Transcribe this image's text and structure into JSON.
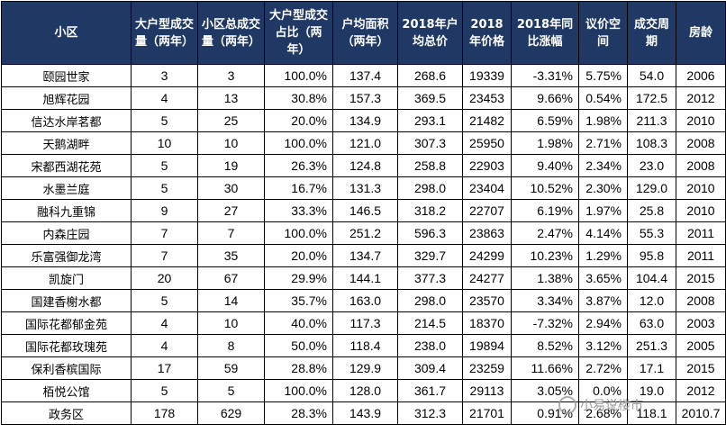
{
  "headers": [
    "小区",
    "大户型成交量（两年）",
    "小区总成交量（两年）",
    "大户型成交占比（两年）",
    "户均面积（两年）",
    "2018年户均总价",
    "2018年价格",
    "2018年同比涨幅",
    "议价空间",
    "成交周期",
    "房龄"
  ],
  "rows": [
    [
      "颐园世家",
      "3",
      "3",
      "100.0%",
      "137.4",
      "268.6",
      "19339",
      "-3.31%",
      "5.75%",
      "54.0",
      "2006"
    ],
    [
      "旭辉花园",
      "4",
      "13",
      "30.8%",
      "157.3",
      "369.5",
      "23453",
      "9.66%",
      "0.54%",
      "172.5",
      "2012"
    ],
    [
      "信达水岸茗都",
      "5",
      "25",
      "20.0%",
      "134.9",
      "293.1",
      "21482",
      "6.59%",
      "1.98%",
      "211.3",
      "2010"
    ],
    [
      "天鹅湖畔",
      "10",
      "10",
      "100.0%",
      "121.0",
      "307.3",
      "25950",
      "1.98%",
      "2.71%",
      "108.3",
      "2008"
    ],
    [
      "宋都西湖花苑",
      "5",
      "19",
      "26.3%",
      "124.8",
      "258.8",
      "22903",
      "9.40%",
      "2.34%",
      "23.0",
      "2008"
    ],
    [
      "水墨兰庭",
      "5",
      "30",
      "16.7%",
      "131.3",
      "298.0",
      "23404",
      "10.52%",
      "2.30%",
      "129.0",
      "2010"
    ],
    [
      "融科九重锦",
      "9",
      "27",
      "33.3%",
      "146.5",
      "318.2",
      "22707",
      "6.19%",
      "1.97%",
      "25.8",
      "2010"
    ],
    [
      "内森庄园",
      "7",
      "7",
      "100.0%",
      "251.2",
      "596.3",
      "23863",
      "2.47%",
      "4.14%",
      "55.3",
      "2011"
    ],
    [
      "乐富强御龙湾",
      "7",
      "35",
      "20.0%",
      "134.7",
      "329.7",
      "24299",
      "10.23%",
      "1.29%",
      "95.8",
      "2011"
    ],
    [
      "凯旋门",
      "20",
      "67",
      "29.9%",
      "144.1",
      "377.3",
      "24277",
      "1.38%",
      "3.65%",
      "104.4",
      "2015"
    ],
    [
      "国建香榭水都",
      "5",
      "14",
      "35.7%",
      "163.0",
      "298.0",
      "23570",
      "3.34%",
      "3.87%",
      "12.0",
      "2008"
    ],
    [
      "国际花都郁金苑",
      "4",
      "10",
      "40.0%",
      "117.3",
      "214.5",
      "18370",
      "-7.32%",
      "2.94%",
      "63.0",
      "2003"
    ],
    [
      "国际花都玫瑰苑",
      "4",
      "8",
      "50.0%",
      "118.4",
      "238.0",
      "19894",
      "8.52%",
      "3.12%",
      "251.3",
      "2005"
    ],
    [
      "保利香槟国际",
      "17",
      "59",
      "28.8%",
      "129.9",
      "309.4",
      "23259",
      "11.66%",
      "2.72%",
      "17.1",
      "2015"
    ],
    [
      "栢悦公馆",
      "5",
      "5",
      "100.0%",
      "128.0",
      "361.7",
      "29113",
      "3.05%",
      "0.0%",
      "19.0",
      "2012"
    ],
    [
      "政务区",
      "178",
      "629",
      "28.3%",
      "143.9",
      "312.3",
      "21701",
      "0.91%",
      "2.68%",
      "118.1",
      "2010.7"
    ]
  ],
  "watermark": "小易说楼市"
}
